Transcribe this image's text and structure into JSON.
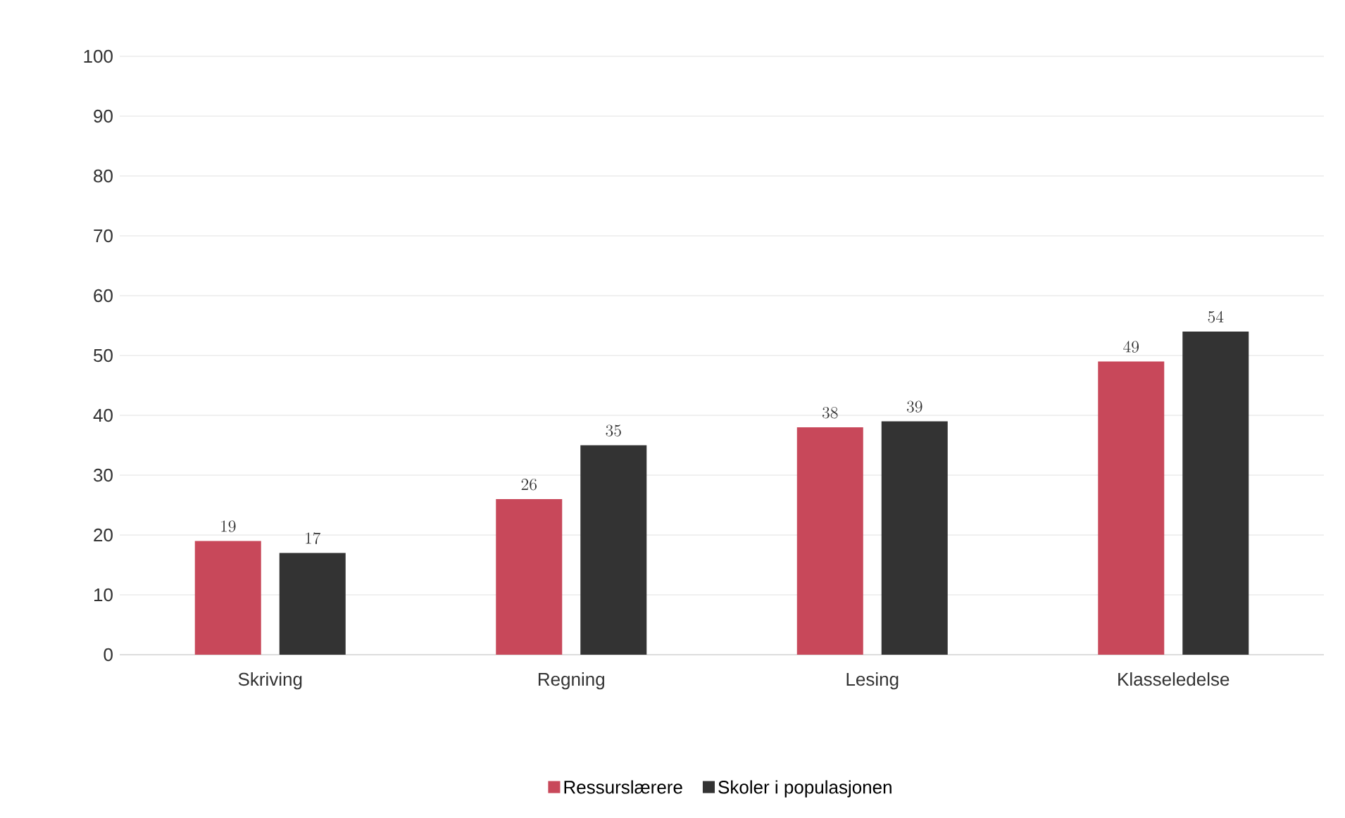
{
  "chart_data": {
    "type": "bar",
    "categories": [
      "Skriving",
      "Regning",
      "Lesing",
      "Klasseledelse"
    ],
    "series": [
      {
        "name": "Ressurslærere",
        "color": "#c8485a",
        "values": [
          19,
          26,
          38,
          49
        ]
      },
      {
        "name": "Skoler i populasjonen",
        "color": "#333333",
        "values": [
          17,
          35,
          39,
          54
        ]
      }
    ],
    "ylim": [
      0,
      100
    ],
    "yticks": [
      0,
      10,
      20,
      30,
      40,
      50,
      60,
      70,
      80,
      90,
      100
    ],
    "grid": "y",
    "legend": "bottom",
    "data_labels": true
  }
}
